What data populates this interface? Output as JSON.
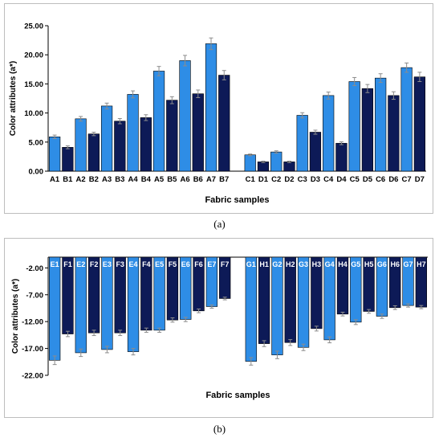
{
  "colors": {
    "light": "#2e8de6",
    "dark": "#0d1a57",
    "axis": "#000000",
    "error": "#8c8c8c",
    "label_on_bar": "#ffffff"
  },
  "panels": [
    {
      "caption": "(a)"
    },
    {
      "caption": "(b)"
    }
  ],
  "chart_data": [
    {
      "type": "bar",
      "xlabel": "Fabric samples",
      "ylabel": "Color attributes (a*)",
      "ylim": [
        0,
        25
      ],
      "yticks": [
        "0.00",
        "5.00",
        "10.00",
        "15.00",
        "20.00",
        "25.00"
      ],
      "ytick_values": [
        0,
        5,
        10,
        15,
        20,
        25
      ],
      "grid": false,
      "categories": [
        "A1",
        "B1",
        "A2",
        "B2",
        "A3",
        "B3",
        "A4",
        "B4",
        "A5",
        "B5",
        "A6",
        "B6",
        "A7",
        "B7",
        "",
        "C1",
        "D1",
        "C2",
        "D2",
        "C3",
        "D3",
        "C4",
        "D4",
        "C5",
        "D5",
        "C6",
        "D6",
        "C7",
        "D7"
      ],
      "values": [
        5.9,
        4.1,
        9.0,
        6.4,
        11.2,
        8.6,
        13.2,
        9.2,
        17.2,
        12.2,
        19.0,
        13.3,
        21.9,
        16.5,
        null,
        2.8,
        1.6,
        3.3,
        1.6,
        9.6,
        6.7,
        13.0,
        4.8,
        15.4,
        14.2,
        16.0,
        13.0,
        17.8,
        16.2
      ],
      "errors": [
        0.3,
        0.25,
        0.4,
        0.3,
        0.5,
        0.45,
        0.6,
        0.5,
        0.8,
        0.6,
        0.9,
        0.65,
        1.0,
        0.8,
        null,
        0.15,
        0.12,
        0.2,
        0.12,
        0.45,
        0.35,
        0.6,
        0.25,
        0.7,
        0.7,
        0.75,
        0.65,
        0.8,
        0.8
      ],
      "shades": [
        "light",
        "dark",
        "light",
        "dark",
        "light",
        "dark",
        "light",
        "dark",
        "light",
        "dark",
        "light",
        "dark",
        "light",
        "dark",
        "",
        "light",
        "dark",
        "light",
        "dark",
        "light",
        "dark",
        "light",
        "dark",
        "light",
        "dark",
        "light",
        "dark",
        "light",
        "dark"
      ]
    },
    {
      "type": "bar",
      "xlabel": "Fabric samples",
      "ylabel": "Color attributes (a*)",
      "ylim": [
        -22,
        0
      ],
      "yticks": [
        "-2.00",
        "-7.00",
        "-12.00",
        "-17.00",
        "-22.00"
      ],
      "ytick_values": [
        -2,
        -7,
        -12,
        -17,
        -22
      ],
      "grid": false,
      "labels_inside_bars": true,
      "categories": [
        "E1",
        "F1",
        "E2",
        "F2",
        "E3",
        "F3",
        "E4",
        "F4",
        "E5",
        "F5",
        "E6",
        "F6",
        "E7",
        "F7",
        "",
        "G1",
        "H1",
        "G2",
        "H2",
        "G3",
        "H3",
        "G4",
        "H4",
        "G5",
        "H5",
        "G6",
        "H6",
        "G7",
        "H7"
      ],
      "values": [
        -19.2,
        -14.3,
        -17.8,
        -14.1,
        -17.2,
        -14.1,
        -17.6,
        -13.6,
        -13.6,
        -11.7,
        -11.6,
        -10.0,
        -9.2,
        -7.7,
        null,
        -19.4,
        -16.1,
        -18.2,
        -15.9,
        -16.8,
        -13.3,
        -15.4,
        -10.6,
        -12.1,
        -10.1,
        -11.0,
        -9.4,
        -9.0,
        -9.3
      ],
      "errors": [
        0.8,
        0.5,
        0.7,
        0.5,
        0.6,
        0.5,
        0.6,
        0.4,
        0.4,
        0.4,
        0.4,
        0.35,
        0.3,
        0.25,
        null,
        0.7,
        0.55,
        0.7,
        0.55,
        0.6,
        0.45,
        0.55,
        0.35,
        0.45,
        0.35,
        0.4,
        0.35,
        0.3,
        0.3
      ],
      "shades": [
        "light",
        "dark",
        "light",
        "dark",
        "light",
        "dark",
        "light",
        "dark",
        "light",
        "dark",
        "light",
        "dark",
        "light",
        "dark",
        "",
        "light",
        "dark",
        "light",
        "dark",
        "light",
        "dark",
        "light",
        "dark",
        "light",
        "dark",
        "light",
        "dark",
        "light",
        "dark"
      ]
    }
  ]
}
